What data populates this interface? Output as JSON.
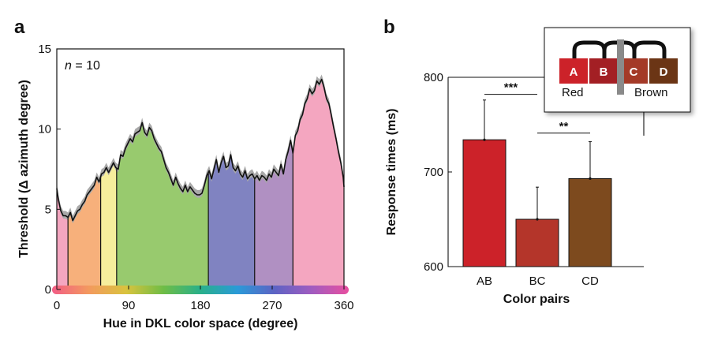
{
  "panels": {
    "a": "a",
    "b": "b"
  },
  "chart_data": [
    {
      "type": "area",
      "annotation": {
        "prefix": "n",
        "suffix": " = 10"
      },
      "xlabel": "Hue in DKL color space (degree)",
      "ylabel": "Threshold (Δ azimuth degree)",
      "xlim": [
        0,
        360
      ],
      "ylim": [
        0,
        15
      ],
      "xticks": [
        0,
        90,
        180,
        270,
        360
      ],
      "yticks": [
        0,
        5,
        10,
        15
      ],
      "x": [
        0,
        2,
        5,
        8,
        11,
        14,
        17,
        20,
        23,
        26,
        29,
        32,
        35,
        38,
        41,
        44,
        47,
        50,
        53,
        56,
        59,
        62,
        65,
        68,
        71,
        74,
        77,
        80,
        83,
        86,
        89,
        92,
        95,
        98,
        101,
        104,
        107,
        110,
        113,
        116,
        119,
        122,
        125,
        128,
        131,
        134,
        137,
        140,
        143,
        146,
        149,
        152,
        155,
        158,
        161,
        164,
        167,
        170,
        173,
        176,
        179,
        182,
        185,
        188,
        191,
        194,
        197,
        200,
        203,
        206,
        209,
        212,
        215,
        218,
        221,
        224,
        227,
        230,
        233,
        236,
        239,
        242,
        245,
        248,
        251,
        254,
        257,
        260,
        263,
        266,
        269,
        272,
        275,
        278,
        281,
        284,
        287,
        290,
        293,
        296,
        299,
        302,
        305,
        308,
        311,
        314,
        317,
        320,
        323,
        326,
        329,
        332,
        335,
        338,
        341,
        344,
        347,
        350,
        353,
        356,
        359,
        360
      ],
      "threshold": [
        6.3,
        5.6,
        4.9,
        4.6,
        4.6,
        4.5,
        4.8,
        4.3,
        4.6,
        4.9,
        5.0,
        5.3,
        5.5,
        5.9,
        6.1,
        6.3,
        6.5,
        7.0,
        6.7,
        7.2,
        7.3,
        7.6,
        7.3,
        7.6,
        7.9,
        7.6,
        7.5,
        8.4,
        8.3,
        8.8,
        9.1,
        9.4,
        9.2,
        9.7,
        9.8,
        9.9,
        10.4,
        9.8,
        9.6,
        10.1,
        9.9,
        9.4,
        9.1,
        8.8,
        8.6,
        8.1,
        7.6,
        7.3,
        6.9,
        6.5,
        7.0,
        6.6,
        6.3,
        6.1,
        6.5,
        6.1,
        6.4,
        6.2,
        6.0,
        5.9,
        5.9,
        6.0,
        6.5,
        7.1,
        7.4,
        6.9,
        7.5,
        8.1,
        7.3,
        7.9,
        8.3,
        7.6,
        7.7,
        8.4,
        7.6,
        7.4,
        7.7,
        7.2,
        7.0,
        7.4,
        6.9,
        7.1,
        7.2,
        6.9,
        7.1,
        6.8,
        7.1,
        7.0,
        6.8,
        7.2,
        7.0,
        7.5,
        7.3,
        7.1,
        7.8,
        7.2,
        8.1,
        8.6,
        9.3,
        8.5,
        9.6,
        9.9,
        10.6,
        10.9,
        11.6,
        11.9,
        12.5,
        12.2,
        12.4,
        13.0,
        12.8,
        13.1,
        12.6,
        11.9,
        11.6,
        10.9,
        10.1,
        9.4,
        8.6,
        7.9,
        7.0,
        6.4
      ],
      "band_width": 0.3,
      "regions": [
        {
          "from": 0,
          "to": 14,
          "color": "#f4a6c0"
        },
        {
          "from": 14,
          "to": 55,
          "color": "#f7b07b"
        },
        {
          "from": 55,
          "to": 75,
          "color": "#f6ee9c"
        },
        {
          "from": 75,
          "to": 190,
          "color": "#98ca6e"
        },
        {
          "from": 190,
          "to": 248,
          "color": "#8083c1"
        },
        {
          "from": 248,
          "to": 296,
          "color": "#b090c2"
        },
        {
          "from": 296,
          "to": 360,
          "color": "#f4a6c0"
        }
      ],
      "hue_bar": [
        "#f25d86",
        "#f39a5e",
        "#d9c33e",
        "#6fbd46",
        "#29b08a",
        "#2a9ad8",
        "#5d63c4",
        "#a05cc0",
        "#e84fa0"
      ]
    },
    {
      "type": "bar",
      "categories": [
        "AB",
        "BC",
        "CD"
      ],
      "values": [
        734,
        650,
        693
      ],
      "errors": [
        42,
        34,
        39
      ],
      "colors": [
        "#cc2229",
        "#b4352a",
        "#7d4a1e"
      ],
      "xlabel": "Color pairs",
      "ylabel": "Response times (ms)",
      "ylim": [
        600,
        800
      ],
      "yticks": [
        600,
        700,
        800
      ],
      "significance": [
        {
          "from": 0,
          "to": 1,
          "label": "***",
          "y": 782
        },
        {
          "from": 1,
          "to": 2,
          "label": "**",
          "y": 741
        }
      ],
      "inset": {
        "patches": [
          {
            "label": "A",
            "color": "#cc2229"
          },
          {
            "label": "B",
            "color": "#a31f24"
          },
          {
            "label": "C",
            "color": "#a43a28"
          },
          {
            "label": "D",
            "color": "#6b3515"
          }
        ],
        "group_labels": [
          "Red",
          "Brown"
        ],
        "boundary_color": "#8a8a8a"
      }
    }
  ]
}
